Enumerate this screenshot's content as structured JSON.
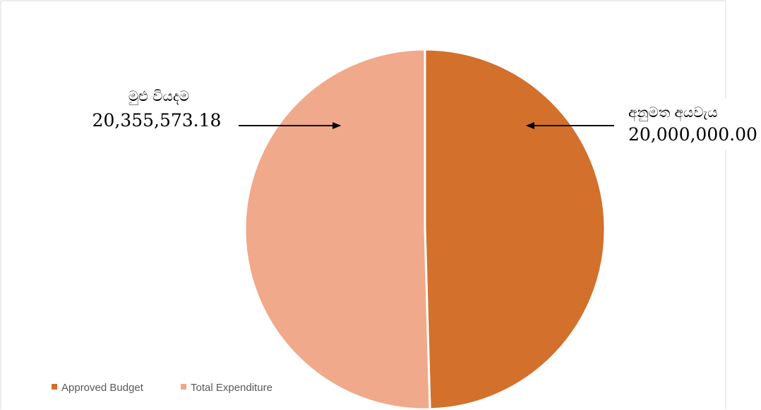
{
  "chart_data": {
    "type": "pie",
    "title": "",
    "series": [
      {
        "name": "",
        "categories": [
          "Approved Budget",
          "Total Expenditure"
        ],
        "values": [
          20000000.0,
          20355573.18
        ]
      }
    ],
    "slices": [
      {
        "category": "Approved Budget",
        "value": 20000000.0,
        "callout_label": "අනුමත අයවැය",
        "callout_value": "20,000,000.00",
        "color": "#d2702c"
      },
      {
        "category": "Total Expenditure",
        "value": 20355573.18,
        "callout_label": "මුළු වියදම",
        "callout_value": "20,355,573.18",
        "color": "#f0a98a"
      }
    ],
    "legend": {
      "placement": "bottom-left",
      "entries": [
        "Approved Budget",
        "Total Expenditure"
      ]
    }
  }
}
